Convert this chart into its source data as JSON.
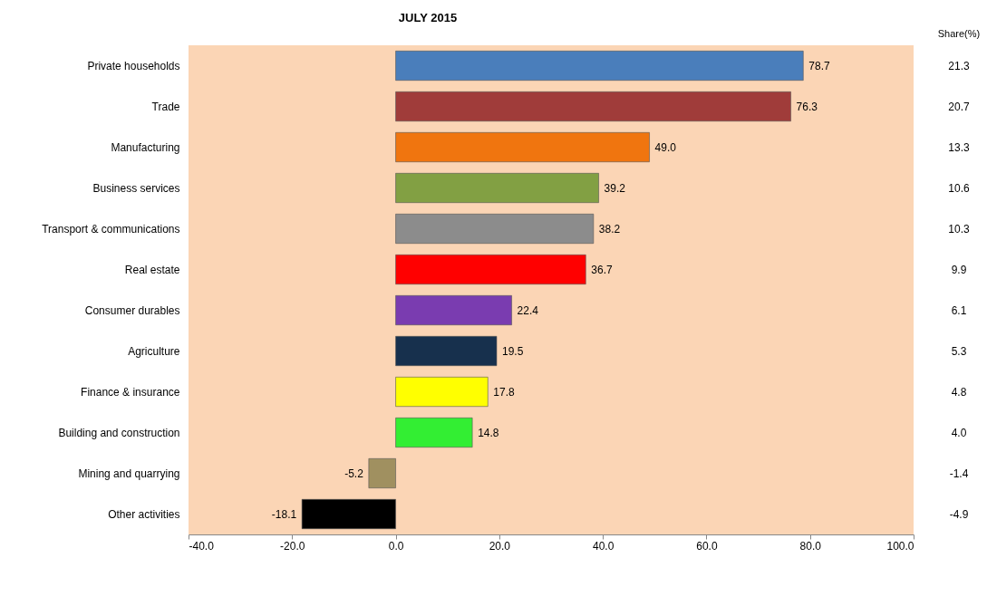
{
  "chart_data": {
    "type": "bar",
    "orientation": "horizontal",
    "title": "JULY 2015",
    "categories": [
      "Private households",
      "Trade",
      "Manufacturing",
      "Business services",
      "Transport & communications",
      "Real estate",
      "Consumer durables",
      "Agriculture",
      "Finance & insurance",
      "Building and construction",
      "Mining and quarrying",
      "Other activities"
    ],
    "values": [
      78.7,
      76.3,
      49.0,
      39.2,
      38.2,
      36.7,
      22.4,
      19.5,
      17.8,
      14.8,
      -5.2,
      -18.1
    ],
    "value_labels": [
      "78.7",
      "76.3",
      "49.0",
      "39.2",
      "38.2",
      "36.7",
      "22.4",
      "19.5",
      "17.8",
      "14.8",
      "-5.2",
      "-18.1"
    ],
    "colors": [
      "#4a7ebb",
      "#a03c3a",
      "#f0750f",
      "#82a043",
      "#8c8c8c",
      "#ff0000",
      "#7a3cb0",
      "#17304d",
      "#ffff00",
      "#33ee33",
      "#a09060",
      "#000000"
    ],
    "xlim": [
      -40,
      100
    ],
    "xticks": [
      {
        "value": -40,
        "label": "-40.0"
      },
      {
        "value": -20,
        "label": "-20.0"
      },
      {
        "value": 0,
        "label": "0.0"
      },
      {
        "value": 20,
        "label": "20.0"
      },
      {
        "value": 40,
        "label": "40.0"
      },
      {
        "value": 60,
        "label": "60.0"
      },
      {
        "value": 80,
        "label": "80.0"
      },
      {
        "value": 100,
        "label": "100.0"
      }
    ],
    "grid": false,
    "legend": false,
    "annotations": [
      "Share(%)",
      "21.3",
      "20.7",
      "13.3",
      "10.6",
      "10.3",
      "9.9",
      "6.1",
      "5.3",
      "4.8",
      "4.0",
      "-1.4",
      "-4.9"
    ]
  }
}
